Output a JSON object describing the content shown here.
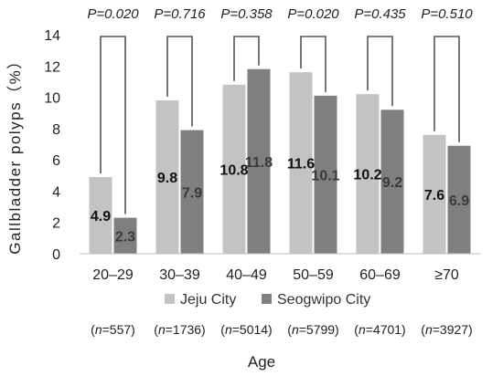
{
  "chart_data": {
    "type": "bar",
    "categories": [
      "20–29",
      "30–39",
      "40–49",
      "50–59",
      "60–69",
      "≥70"
    ],
    "series": [
      {
        "name": "Jeju City",
        "values": [
          4.9,
          9.8,
          10.8,
          11.6,
          10.2,
          7.6
        ],
        "color": "#c3c3c3",
        "label_color": "#111111"
      },
      {
        "name": "Seogwipo City",
        "values": [
          2.3,
          7.9,
          11.8,
          10.1,
          9.2,
          6.9
        ],
        "color": "#7f7f7f",
        "label_color": "#3a3a3a"
      }
    ],
    "value_labels": {
      "jeju": [
        "4.9",
        "9.8",
        "10.8",
        "11.6",
        "10.2",
        "7.6"
      ],
      "seogwipo": [
        "2.3",
        "7.9",
        "11.8",
        "10.1",
        "9.2",
        "6.9"
      ]
    },
    "p_values": [
      "P=0.020",
      "P=0.716",
      "P=0.358",
      "P=0.020",
      "P=0.435",
      "P=0.510"
    ],
    "n_labels": [
      "(n=557)",
      "(n=1736)",
      "(n=5014)",
      "(n=5799)",
      "(n=4701)",
      "(n=3927)"
    ],
    "ylabel": "Gallbladder polyps（%）",
    "xlabel": "Age",
    "ylim": [
      0,
      14
    ],
    "yticks": [
      "0",
      "2",
      "4",
      "6",
      "8",
      "10",
      "12",
      "14"
    ],
    "grid": false,
    "legend_position": "bottom"
  }
}
